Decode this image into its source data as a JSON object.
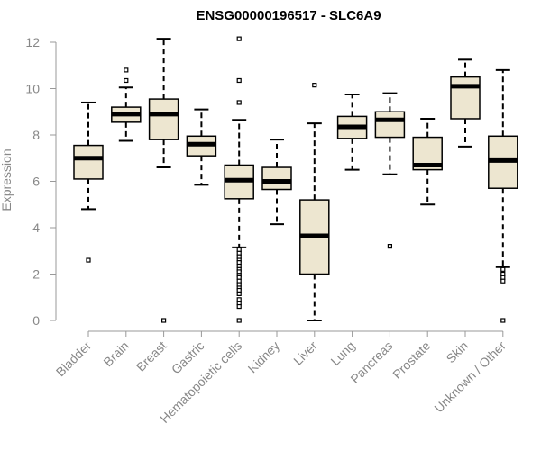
{
  "chart_data": {
    "type": "boxplot",
    "title": "ENSG00000196517 - SLC6A9",
    "xlabel": "",
    "ylabel": "Expression",
    "ylim": [
      0,
      12
    ],
    "yticks": [
      0,
      2,
      4,
      6,
      8,
      10,
      12
    ],
    "colors": {
      "box_fill": "#EDE6D0",
      "stroke": "#000000",
      "axis": "#999999",
      "tick_text": "#888888"
    },
    "categories": [
      "Bladder",
      "Brain",
      "Breast",
      "Gastric",
      "Hematopoietic cells",
      "Kidney",
      "Liver",
      "Lung",
      "Pancreas",
      "Prostate",
      "Skin",
      "Unknown / Other"
    ],
    "boxes": [
      {
        "category": "Bladder",
        "whisker_low": 4.8,
        "q1": 6.1,
        "median": 7.0,
        "q3": 7.55,
        "whisker_high": 9.4,
        "outliers": [
          2.6
        ]
      },
      {
        "category": "Brain",
        "whisker_low": 7.75,
        "q1": 8.55,
        "median": 8.9,
        "q3": 9.2,
        "whisker_high": 10.05,
        "outliers": [
          10.35,
          10.8
        ]
      },
      {
        "category": "Breast",
        "whisker_low": 6.6,
        "q1": 7.8,
        "median": 8.9,
        "q3": 9.55,
        "whisker_high": 12.15,
        "outliers": [
          0.0
        ]
      },
      {
        "category": "Gastric",
        "whisker_low": 5.85,
        "q1": 7.1,
        "median": 7.6,
        "q3": 7.95,
        "whisker_high": 9.1,
        "outliers": []
      },
      {
        "category": "Hematopoietic cells",
        "whisker_low": 3.15,
        "q1": 5.25,
        "median": 6.05,
        "q3": 6.7,
        "whisker_high": 8.65,
        "outliers": [
          12.15,
          10.35,
          9.4,
          3.05,
          2.9,
          2.75,
          2.6,
          2.5,
          2.35,
          2.2,
          2.1,
          1.95,
          1.85,
          1.7,
          1.55,
          1.4,
          1.3,
          1.15,
          0.9,
          0.75,
          0.6,
          0.0
        ]
      },
      {
        "category": "Kidney",
        "whisker_low": 4.15,
        "q1": 5.65,
        "median": 6.0,
        "q3": 6.6,
        "whisker_high": 7.8,
        "outliers": []
      },
      {
        "category": "Liver",
        "whisker_low": 0.0,
        "q1": 2.0,
        "median": 3.65,
        "q3": 5.2,
        "whisker_high": 8.5,
        "outliers": [
          10.15
        ]
      },
      {
        "category": "Lung",
        "whisker_low": 6.5,
        "q1": 7.85,
        "median": 8.35,
        "q3": 8.8,
        "whisker_high": 9.75,
        "outliers": []
      },
      {
        "category": "Pancreas",
        "whisker_low": 6.3,
        "q1": 7.9,
        "median": 8.65,
        "q3": 9.0,
        "whisker_high": 9.8,
        "outliers": [
          3.2
        ]
      },
      {
        "category": "Prostate",
        "whisker_low": 5.0,
        "q1": 6.5,
        "median": 6.7,
        "q3": 7.9,
        "whisker_high": 8.7,
        "outliers": []
      },
      {
        "category": "Skin",
        "whisker_low": 7.5,
        "q1": 8.7,
        "median": 10.1,
        "q3": 10.5,
        "whisker_high": 11.25,
        "outliers": []
      },
      {
        "category": "Unknown / Other",
        "whisker_low": 2.3,
        "q1": 5.7,
        "median": 6.9,
        "q3": 7.95,
        "whisker_high": 10.8,
        "outliers": [
          2.2,
          2.0,
          1.85,
          1.7,
          0.0
        ]
      }
    ]
  }
}
